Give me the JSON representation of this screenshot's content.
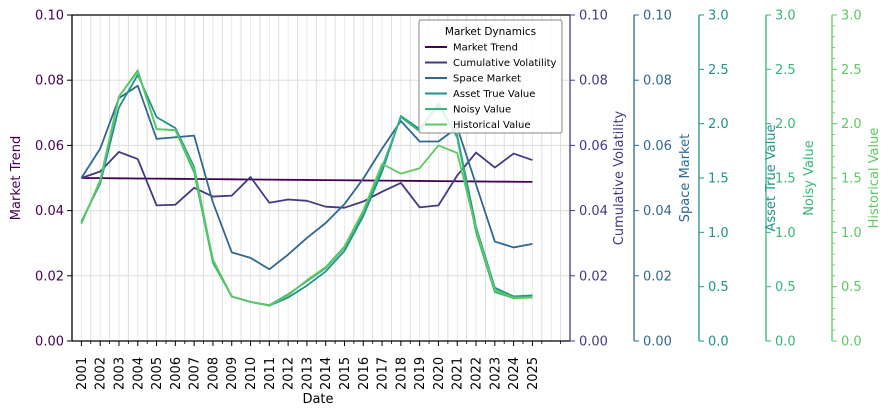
{
  "chart_data": {
    "type": "line",
    "xlabel": "Date",
    "x": [
      "2001",
      "2002",
      "2003",
      "2004",
      "2005",
      "2006",
      "2007",
      "2008",
      "2009",
      "2010",
      "2011",
      "2012",
      "2013",
      "2014",
      "2015",
      "2016",
      "2017",
      "2018",
      "2019",
      "2020",
      "2021",
      "2022",
      "2023",
      "2024",
      "2025"
    ],
    "x_points": [
      2000.5,
      2001.5,
      2002.5,
      2003.5,
      2004.5,
      2005.5,
      2006.5,
      2007.5,
      2008.5,
      2009.5,
      2010.5,
      2011.5,
      2012.5,
      2013.5,
      2014.5,
      2015.5,
      2016.5,
      2017.5,
      2018.5,
      2019.5,
      2020.5,
      2021.5,
      2022.5,
      2023.5,
      2024.5
    ],
    "x_minor_grid": true,
    "grid": true,
    "legend": {
      "title": "Market Dynamics",
      "placement": "upper-right"
    },
    "axes": [
      {
        "id": "market_trend",
        "label": "Market Trend",
        "side": "left",
        "ylim": [
          0,
          0.1
        ],
        "ticks": [
          "0.00",
          "0.02",
          "0.04",
          "0.06",
          "0.08",
          "0.10"
        ],
        "color": "#440154"
      },
      {
        "id": "cum_vol",
        "label": "Cumulative Volatility",
        "side": "right",
        "ylim": [
          0,
          0.1
        ],
        "ticks": [
          "0.00",
          "0.02",
          "0.04",
          "0.06",
          "0.08",
          "0.10"
        ],
        "color": "#443983"
      },
      {
        "id": "space",
        "label": "Space Market",
        "side": "right",
        "ylim": [
          0,
          0.1
        ],
        "ticks": [
          "0.00",
          "0.02",
          "0.04",
          "0.06",
          "0.08",
          "0.10"
        ],
        "color": "#31688e"
      },
      {
        "id": "asset",
        "label": "Asset True Value",
        "side": "right",
        "ylim": [
          0,
          3.0
        ],
        "ticks": [
          "0.0",
          "0.5",
          "1.0",
          "1.5",
          "2.0",
          "2.5",
          "3.0"
        ],
        "color": "#21918c"
      },
      {
        "id": "noisy",
        "label": "Noisy Value",
        "side": "right",
        "ylim": [
          0,
          3.0
        ],
        "ticks": [
          "0.0",
          "0.5",
          "1.0",
          "1.5",
          "2.0",
          "2.5",
          "3.0"
        ],
        "color": "#35b779"
      },
      {
        "id": "hist",
        "label": "Historical Value",
        "side": "right",
        "ylim": [
          0,
          3.0
        ],
        "ticks": [
          "0.0",
          "0.5",
          "1.0",
          "1.5",
          "2.0",
          "2.5",
          "3.0"
        ],
        "color": "#5ec962"
      }
    ],
    "series": [
      {
        "name": "Market Trend",
        "axis": "market_trend",
        "color": "#440154",
        "values": [
          0.05,
          0.04995,
          0.0499,
          0.04985,
          0.0498,
          0.04975,
          0.0497,
          0.04965,
          0.0496,
          0.04955,
          0.0495,
          0.04945,
          0.0494,
          0.04935,
          0.0493,
          0.04925,
          0.0492,
          0.04915,
          0.0491,
          0.04905,
          0.049,
          0.04895,
          0.0489,
          0.04885,
          0.0488
        ]
      },
      {
        "name": "Cumulative Volatility",
        "axis": "cum_vol",
        "color": "#443983",
        "values": [
          0.05,
          0.052,
          0.058,
          0.0558,
          0.0416,
          0.0418,
          0.047,
          0.0443,
          0.0446,
          0.0503,
          0.0424,
          0.0434,
          0.043,
          0.0412,
          0.0409,
          0.0428,
          0.0458,
          0.0485,
          0.041,
          0.0416,
          0.0508,
          0.0578,
          0.0532,
          0.0575,
          0.0555
        ]
      },
      {
        "name": "Space Market",
        "axis": "space",
        "color": "#31688e",
        "values": [
          0.05,
          0.059,
          0.0745,
          0.0783,
          0.062,
          0.0625,
          0.063,
          0.0425,
          0.0272,
          0.0255,
          0.022,
          0.0265,
          0.0316,
          0.0362,
          0.042,
          0.0498,
          0.059,
          0.0675,
          0.0612,
          0.0612,
          0.0655,
          0.048,
          0.0305,
          0.0287,
          0.0298
        ]
      },
      {
        "name": "Asset True Value",
        "axis": "asset",
        "color": "#21918c",
        "values": [
          1.1,
          1.45,
          2.15,
          2.45,
          2.06,
          1.96,
          1.6,
          0.74,
          0.41,
          0.36,
          0.325,
          0.4,
          0.51,
          0.64,
          0.83,
          1.15,
          1.56,
          2.07,
          1.95,
          2.17,
          1.89,
          1.05,
          0.49,
          0.41,
          0.42
        ]
      },
      {
        "name": "Noisy Value",
        "axis": "noisy",
        "color": "#35b779",
        "values": [
          1.08,
          1.48,
          2.25,
          2.49,
          1.95,
          1.94,
          1.55,
          0.72,
          0.41,
          0.36,
          0.33,
          0.43,
          0.55,
          0.67,
          0.86,
          1.18,
          1.6,
          2.06,
          1.93,
          2.19,
          1.87,
          1.0,
          0.45,
          0.395,
          0.4
        ]
      },
      {
        "name": "Historical Value",
        "axis": "hist",
        "color": "#5ec962",
        "values": [
          1.09,
          1.47,
          2.25,
          2.48,
          1.95,
          1.94,
          1.58,
          0.75,
          0.41,
          0.36,
          0.325,
          0.42,
          0.56,
          0.68,
          0.87,
          1.2,
          1.63,
          1.54,
          1.59,
          1.8,
          1.73,
          1.03,
          0.47,
          0.4,
          0.4
        ]
      }
    ]
  }
}
